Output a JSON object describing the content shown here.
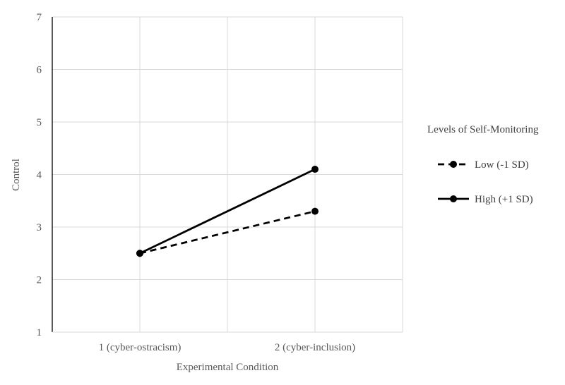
{
  "chart_data": {
    "type": "line",
    "xlabel": "Experimental Condition",
    "ylabel": "Control",
    "categories": [
      "1 (cyber-ostracism)",
      "2 (cyber-inclusion)"
    ],
    "ylim": [
      1,
      7
    ],
    "yticks": [
      1,
      2,
      3,
      4,
      5,
      6,
      7
    ],
    "grid": true,
    "legend_title": "Levels of Self-Monitoring",
    "legend_position": "right",
    "series": [
      {
        "name": "Low (-1 SD)",
        "values": [
          2.5,
          3.3
        ],
        "line_style": "dashed",
        "marker": "circle",
        "color": "#000000"
      },
      {
        "name": "High (+1 SD)",
        "values": [
          2.5,
          4.1
        ],
        "line_style": "solid",
        "marker": "circle",
        "color": "#000000"
      }
    ],
    "colors": {
      "grid": "#d9d9d9",
      "axis": "#000000",
      "text": "#595959"
    }
  }
}
